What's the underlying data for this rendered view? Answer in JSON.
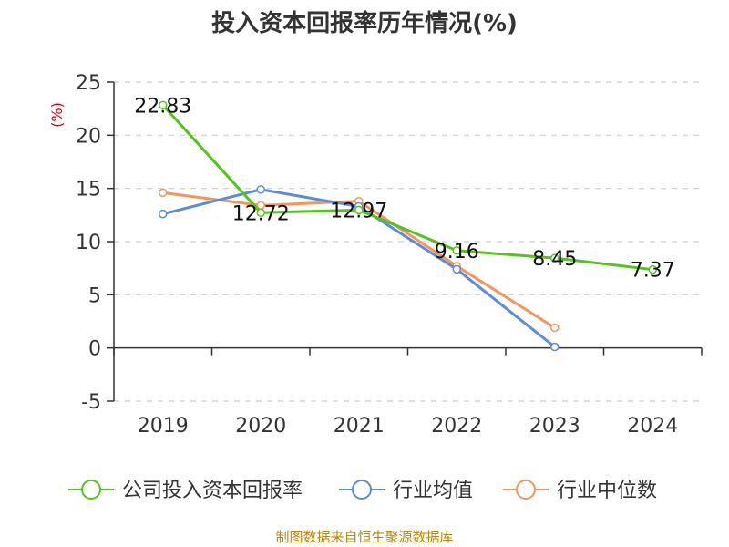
{
  "chart_data": {
    "type": "line",
    "title": "投入资本回报率历年情况(%)",
    "ylabel": "(%)",
    "categories": [
      "2019",
      "2020",
      "2021",
      "2022",
      "2023",
      "2024"
    ],
    "ylim": [
      -5,
      25
    ],
    "yticks": [
      -5,
      0,
      5,
      10,
      15,
      20,
      25
    ],
    "grid": true,
    "legend_position": "bottom",
    "series": [
      {
        "name": "公司投入资本回报率",
        "color": "#52c41a",
        "values": [
          22.83,
          12.72,
          12.97,
          9.16,
          8.45,
          7.37
        ],
        "labels": [
          "22.83",
          "12.72",
          "12.97",
          "9.16",
          "8.45",
          "7.37"
        ]
      },
      {
        "name": "行业均值",
        "color": "#5b8bdc",
        "values": [
          12.6,
          14.9,
          13.3,
          7.4,
          0.1,
          null
        ],
        "labels": null
      },
      {
        "name": "行业中位数",
        "color": "#f4955e",
        "values": [
          14.6,
          13.4,
          13.8,
          7.7,
          1.9,
          null
        ],
        "labels": null
      }
    ]
  },
  "source": "制图数据来自恒生聚源数据库"
}
